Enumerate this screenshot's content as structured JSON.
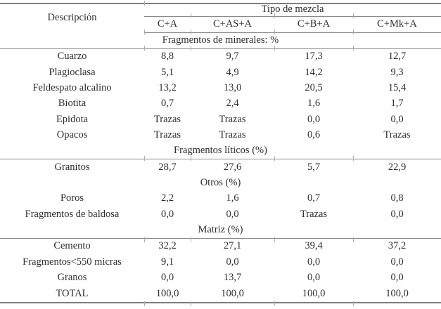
{
  "page": {
    "text_color": "#2e2e2e",
    "rule_color": "#8a8a8a",
    "background": "#ffffff"
  },
  "table": {
    "description_header": "Descripción",
    "group_header": "Tipo de mezcla",
    "columns": [
      "C+A",
      "C+AS+A",
      "C+B+A",
      "C+Mk+A"
    ],
    "sections": [
      {
        "title": "Fragmentos de minerales: %",
        "rows": [
          {
            "label": "Cuarzo",
            "values": [
              "8,8",
              "9,7",
              "17,3",
              "12,7"
            ]
          },
          {
            "label": "Plagioclasa",
            "values": [
              "5,1",
              "4,9",
              "14,2",
              "9,3"
            ]
          },
          {
            "label": "Feldespato alcalino",
            "values": [
              "13,2",
              "13,0",
              "20,5",
              "15,4"
            ]
          },
          {
            "label": "Biotita",
            "values": [
              "0,7",
              "2,4",
              "1,6",
              "1,7"
            ]
          },
          {
            "label": "Epidota",
            "values": [
              "Trazas",
              "Trazas",
              "0,0",
              "0,0"
            ]
          },
          {
            "label": "Opacos",
            "values": [
              "Trazas",
              "Trazas",
              "0,6",
              "Trazas"
            ]
          }
        ]
      },
      {
        "title": "Fragmentos líticos (%)",
        "rows": [
          {
            "label": "Granitos",
            "values": [
              "28,7",
              "27,6",
              "5,7",
              "22,9"
            ]
          }
        ]
      },
      {
        "title": "Otros (%)",
        "rows": [
          {
            "label": "Poros",
            "values": [
              "2,2",
              "1,6",
              "0,7",
              "0,8"
            ]
          },
          {
            "label": "Fragmentos de baldosa",
            "values": [
              "0,0",
              "0,0",
              "Trazas",
              "0,0"
            ]
          }
        ]
      },
      {
        "title": "Matriz (%)",
        "rows": [
          {
            "label": "Cemento",
            "values": [
              "32,2",
              "27,1",
              "39,4",
              "37,2"
            ]
          },
          {
            "label": "Fragmentos<550 micras",
            "values": [
              "9,1",
              "0,0",
              "0,0",
              "0,0"
            ]
          },
          {
            "label": "Granos",
            "values": [
              "0,0",
              "13,7",
              "0,0",
              "0,0"
            ]
          },
          {
            "label": "TOTAL",
            "values": [
              "100,0",
              "100,0",
              "100,0",
              "100,0"
            ]
          }
        ]
      }
    ]
  }
}
